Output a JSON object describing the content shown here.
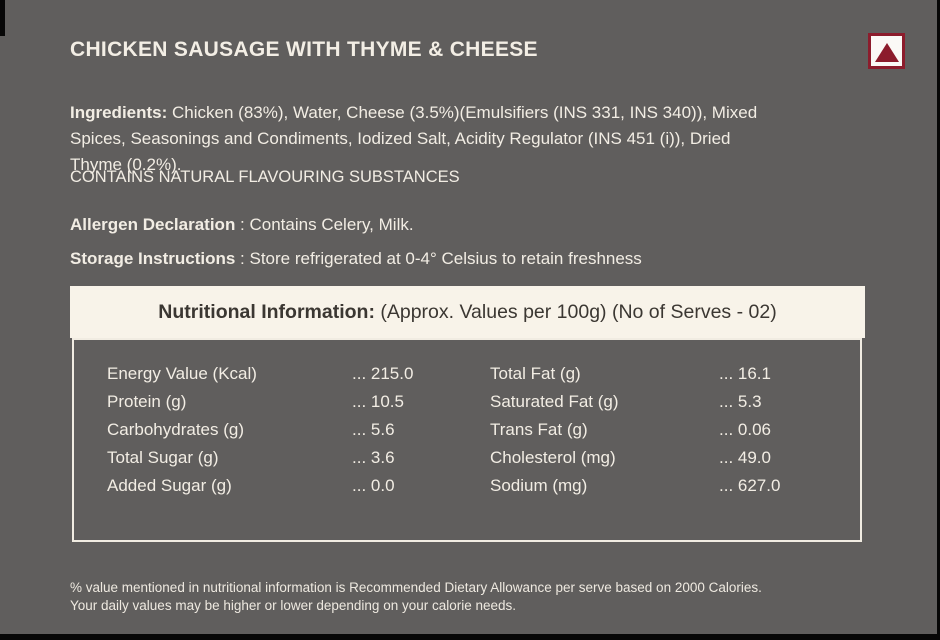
{
  "product": {
    "title": "CHICKEN SAUSAGE WITH THYME & CHEESE",
    "mark": "non-vegetarian-triangle-mark"
  },
  "info": {
    "ingredients_label": "Ingredients:",
    "ingredients_text": " Chicken (83%), Water, Cheese (3.5%)(Emulsifiers (INS 331, INS 340)), Mixed Spices, Seasonings and Condiments, Iodized Salt, Acidity Regulator (INS 451 (i)), Dried Thyme (0.2%).",
    "contains": "CONTAINS NATURAL FLAVOURING SUBSTANCES",
    "allergen_label": "Allergen Declaration",
    "allergen_text": " : Contains Celery, Milk.",
    "storage_label": "Storage Instructions",
    "storage_text": " : Store refrigerated at 0-4° Celsius to retain freshness"
  },
  "nutrition": {
    "header_bold": "Nutritional Information:",
    "header_rest": " (Approx. Values per 100g) (No of Serves - 02)",
    "left": [
      {
        "label": "Energy Value (Kcal)",
        "value": "... 215.0"
      },
      {
        "label": "Protein (g)",
        "value": "... 10.5"
      },
      {
        "label": "Carbohydrates (g)",
        "value": "... 5.6"
      },
      {
        "label": "Total Sugar (g)",
        "value": "... 3.6"
      },
      {
        "label": "Added Sugar (g)",
        "value": "... 0.0"
      }
    ],
    "right": [
      {
        "label": "Total Fat (g)",
        "value": "... 16.1"
      },
      {
        "label": "Saturated Fat (g)",
        "value": "... 5.3"
      },
      {
        "label": "Trans Fat (g)",
        "value": "... 0.06"
      },
      {
        "label": "Cholesterol (mg)",
        "value": "... 49.0"
      },
      {
        "label": "Sodium (mg)",
        "value": "... 627.0"
      }
    ]
  },
  "footer": {
    "line1": "% value mentioned in nutritional information is Recommended Dietary Allowance per serve based on 2000 Calories.",
    "line2": "Your daily values may be higher or lower depending on your calorie needs."
  },
  "colors": {
    "background": "#605e5d",
    "text_cream": "#f2ede4",
    "panel_cream": "#f8f3e9",
    "panel_text": "#3b3732",
    "maroon": "#8c1c2c",
    "edge_black": "#070707"
  }
}
